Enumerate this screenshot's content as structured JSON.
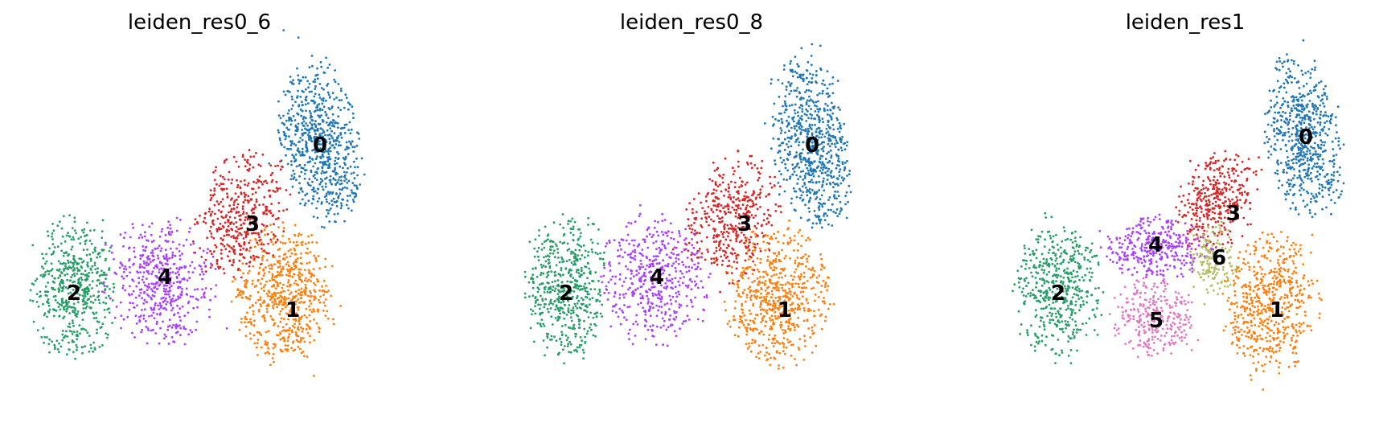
{
  "chart_data": [
    {
      "type": "scatter",
      "title": "leiden_res0_6",
      "xlabel": "",
      "ylabel": "",
      "grid": false,
      "legend": "on data",
      "clusters": [
        {
          "label": "0",
          "color": "#1f77b4"
        },
        {
          "label": "1",
          "color": "#ff7f0e"
        },
        {
          "label": "2",
          "color": "#279e68"
        },
        {
          "label": "3",
          "color": "#d62728"
        },
        {
          "label": "4",
          "color": "#aa40fc"
        }
      ]
    },
    {
      "type": "scatter",
      "title": "leiden_res0_8",
      "xlabel": "",
      "ylabel": "",
      "grid": false,
      "legend": "on data",
      "clusters": [
        {
          "label": "0",
          "color": "#1f77b4"
        },
        {
          "label": "1",
          "color": "#ff7f0e"
        },
        {
          "label": "2",
          "color": "#279e68"
        },
        {
          "label": "3",
          "color": "#d62728"
        },
        {
          "label": "4",
          "color": "#aa40fc"
        }
      ]
    },
    {
      "type": "scatter",
      "title": "leiden_res1",
      "xlabel": "",
      "ylabel": "",
      "grid": false,
      "legend": "on data",
      "clusters": [
        {
          "label": "0",
          "color": "#1f77b4"
        },
        {
          "label": "1",
          "color": "#ff7f0e"
        },
        {
          "label": "2",
          "color": "#279e68"
        },
        {
          "label": "3",
          "color": "#d62728"
        },
        {
          "label": "4",
          "color": "#aa40fc"
        },
        {
          "label": "5",
          "color": "#e377c2"
        },
        {
          "label": "6",
          "color": "#b5bd61"
        }
      ]
    }
  ]
}
